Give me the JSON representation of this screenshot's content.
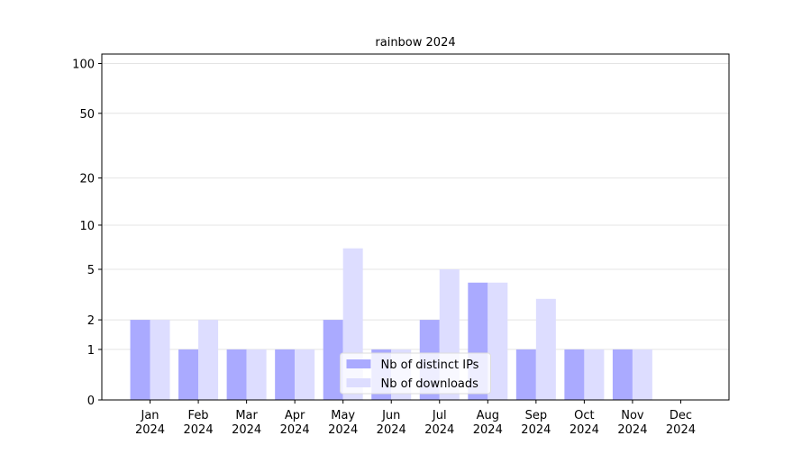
{
  "chart_data": {
    "type": "bar",
    "title": "rainbow 2024",
    "scale": "log1p",
    "categories": [
      "Jan\n2024",
      "Feb\n2024",
      "Mar\n2024",
      "Apr\n2024",
      "May\n2024",
      "Jun\n2024",
      "Jul\n2024",
      "Aug\n2024",
      "Sep\n2024",
      "Oct\n2024",
      "Nov\n2024",
      "Dec\n2024"
    ],
    "series": [
      {
        "name": "Nb of distinct IPs",
        "color": "#aaaaff",
        "values": [
          2,
          1,
          1,
          1,
          2,
          1,
          2,
          4,
          1,
          1,
          1,
          0
        ]
      },
      {
        "name": "Nb of downloads",
        "color": "#ddddff",
        "values": [
          2,
          2,
          1,
          1,
          7,
          1,
          5,
          4,
          3,
          1,
          1,
          0
        ]
      }
    ],
    "ylim": [
      0,
      114
    ],
    "yticks": [
      0,
      1,
      2,
      5,
      10,
      20,
      50,
      100
    ],
    "grid": true,
    "legend": "lower center"
  }
}
